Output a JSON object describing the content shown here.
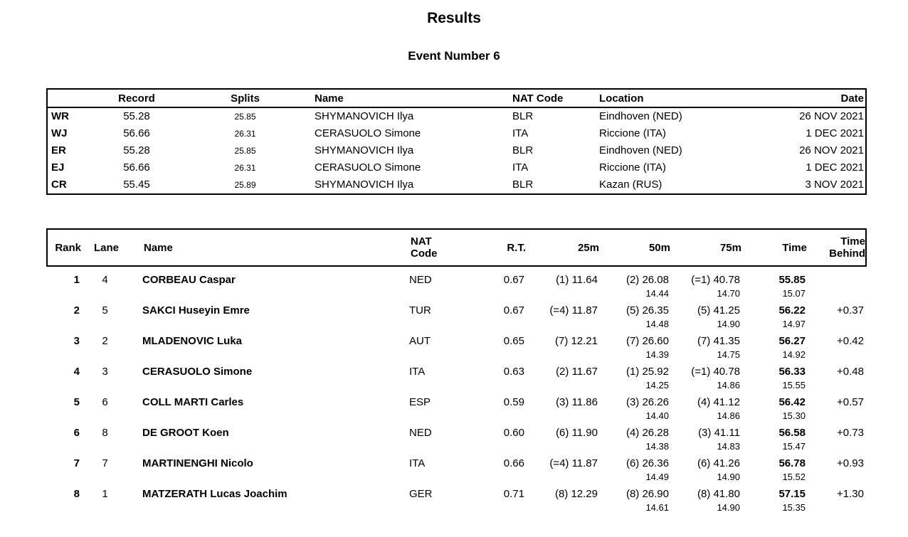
{
  "page": {
    "title": "Results",
    "subtitle": "Event Number 6"
  },
  "records": {
    "headers": {
      "record": "Record",
      "splits": "Splits",
      "name": "Name",
      "nat": "NAT Code",
      "location": "Location",
      "date": "Date"
    },
    "rows": [
      {
        "type": "WR",
        "record": "55.28",
        "splits": "25.85",
        "name": "SHYMANOVICH Ilya",
        "nat": "BLR",
        "location": "Eindhoven (NED)",
        "date": "26 NOV 2021"
      },
      {
        "type": "WJ",
        "record": "56.66",
        "splits": "26.31",
        "name": "CERASUOLO Simone",
        "nat": "ITA",
        "location": "Riccione (ITA)",
        "date": "1 DEC 2021"
      },
      {
        "type": "ER",
        "record": "55.28",
        "splits": "25.85",
        "name": "SHYMANOVICH Ilya",
        "nat": "BLR",
        "location": "Eindhoven (NED)",
        "date": "26 NOV 2021"
      },
      {
        "type": "EJ",
        "record": "56.66",
        "splits": "26.31",
        "name": "CERASUOLO Simone",
        "nat": "ITA",
        "location": "Riccione (ITA)",
        "date": "1 DEC 2021"
      },
      {
        "type": "CR",
        "record": "55.45",
        "splits": "25.89",
        "name": "SHYMANOVICH Ilya",
        "nat": "BLR",
        "location": "Kazan (RUS)",
        "date": "3 NOV 2021"
      }
    ]
  },
  "results": {
    "headers": {
      "rank": "Rank",
      "lane": "Lane",
      "name": "Name",
      "nat1": "NAT",
      "nat2": "Code",
      "rt": "R.T.",
      "m25": "25m",
      "m50": "50m",
      "m75": "75m",
      "time": "Time",
      "behind1": "Time",
      "behind2": "Behind"
    },
    "rows": [
      {
        "rank": "1",
        "lane": "4",
        "name": "CORBEAU Caspar",
        "nat": "NED",
        "rt": "0.67",
        "m25": "(1) 11.64",
        "m50": "(2) 26.08",
        "m75": "(=1) 40.78",
        "time": "55.85",
        "behind": "",
        "s50": "14.44",
        "s75": "14.70",
        "slast": "15.07"
      },
      {
        "rank": "2",
        "lane": "5",
        "name": "SAKCI Huseyin Emre",
        "nat": "TUR",
        "rt": "0.67",
        "m25": "(=4) 11.87",
        "m50": "(5) 26.35",
        "m75": "(5) 41.25",
        "time": "56.22",
        "behind": "+0.37",
        "s50": "14.48",
        "s75": "14.90",
        "slast": "14.97"
      },
      {
        "rank": "3",
        "lane": "2",
        "name": "MLADENOVIC Luka",
        "nat": "AUT",
        "rt": "0.65",
        "m25": "(7) 12.21",
        "m50": "(7) 26.60",
        "m75": "(7) 41.35",
        "time": "56.27",
        "behind": "+0.42",
        "s50": "14.39",
        "s75": "14.75",
        "slast": "14.92"
      },
      {
        "rank": "4",
        "lane": "3",
        "name": "CERASUOLO Simone",
        "nat": "ITA",
        "rt": "0.63",
        "m25": "(2) 11.67",
        "m50": "(1) 25.92",
        "m75": "(=1) 40.78",
        "time": "56.33",
        "behind": "+0.48",
        "s50": "14.25",
        "s75": "14.86",
        "slast": "15.55"
      },
      {
        "rank": "5",
        "lane": "6",
        "name": "COLL MARTI Carles",
        "nat": "ESP",
        "rt": "0.59",
        "m25": "(3) 11.86",
        "m50": "(3) 26.26",
        "m75": "(4) 41.12",
        "time": "56.42",
        "behind": "+0.57",
        "s50": "14.40",
        "s75": "14.86",
        "slast": "15.30"
      },
      {
        "rank": "6",
        "lane": "8",
        "name": "DE GROOT Koen",
        "nat": "NED",
        "rt": "0.60",
        "m25": "(6) 11.90",
        "m50": "(4) 26.28",
        "m75": "(3) 41.11",
        "time": "56.58",
        "behind": "+0.73",
        "s50": "14.38",
        "s75": "14.83",
        "slast": "15.47"
      },
      {
        "rank": "7",
        "lane": "7",
        "name": "MARTINENGHI Nicolo",
        "nat": "ITA",
        "rt": "0.66",
        "m25": "(=4) 11.87",
        "m50": "(6) 26.36",
        "m75": "(6) 41.26",
        "time": "56.78",
        "behind": "+0.93",
        "s50": "14.49",
        "s75": "14.90",
        "slast": "15.52"
      },
      {
        "rank": "8",
        "lane": "1",
        "name": "MATZERATH Lucas Joachim",
        "nat": "GER",
        "rt": "0.71",
        "m25": "(8) 12.29",
        "m50": "(8) 26.90",
        "m75": "(8) 41.80",
        "time": "57.15",
        "behind": "+1.30",
        "s50": "14.61",
        "s75": "14.90",
        "slast": "15.35"
      }
    ]
  }
}
